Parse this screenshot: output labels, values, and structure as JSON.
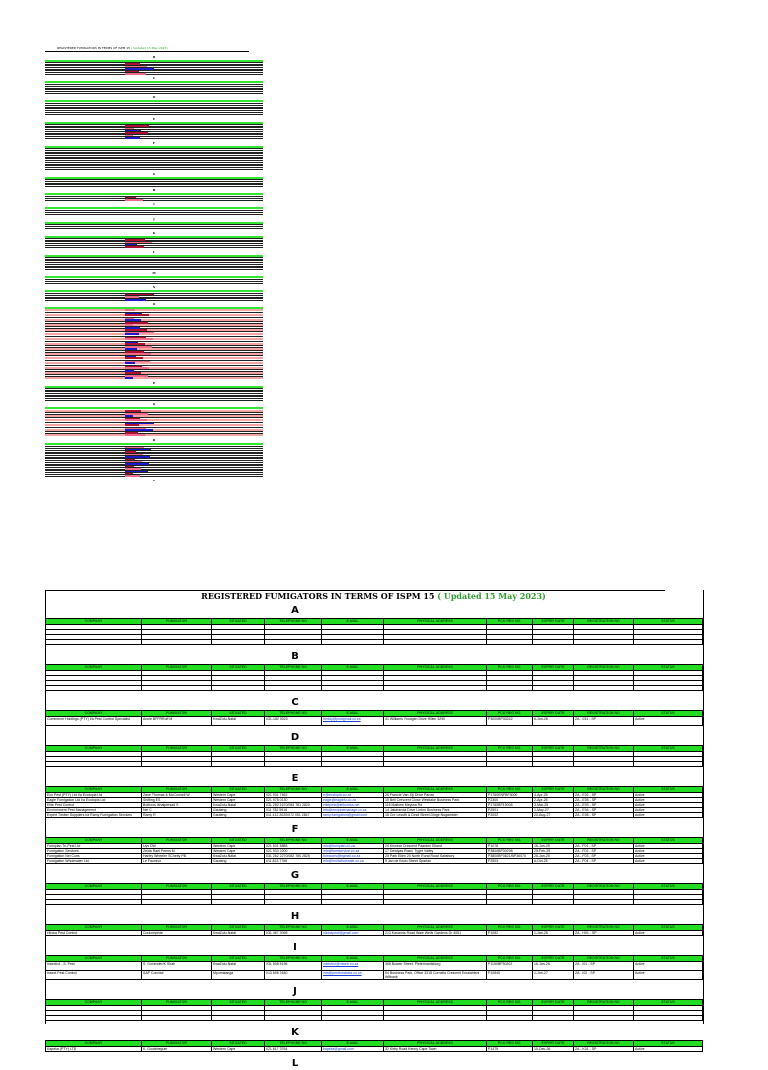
{
  "document": {
    "title": "REGISTERED FUMIGATORS IN TERMS OF ISPM 15",
    "updated": "( Updated 15 May 2023)",
    "columns": [
      "COMPANY",
      "FUMIGATOR",
      "SITUATED",
      "TELEPHONE NO",
      "E-MAIL",
      "PHYSICAL ADDRESS",
      "PCO Reg No.",
      "EXPIRY DATE",
      "REGISTRATION NO",
      "STATUS"
    ],
    "sections": [
      {
        "letter": "A",
        "rows": []
      },
      {
        "letter": "B",
        "rows": []
      },
      {
        "letter": "C",
        "rows": [
          [
            "Commerce Holdings (PTY) t/a Pest Control Specialist",
            "Annie BFFRRoff M",
            "KwaZulu-Natal",
            "031-182 0023",
            "freddy@pestgmail.co.za",
            "41 Williams Youngen Drive Hillen 3290",
            "P3000BP30242",
            "6-Jun-26",
            "ZA - 031 - SP",
            "Active"
          ]
        ]
      },
      {
        "letter": "D",
        "rows": []
      },
      {
        "letter": "E",
        "rows": [
          [
            "Eco Pest (PTY) Ltd t/a Ecotopia Ltd",
            "Zane Thomas & McConnell W",
            "Western Cape",
            "021 931 7462",
            "e@ecotopia.co.za",
            "26 Francie Van Zijl Drive Parow",
            "P1760ENFBF3000",
            "4-Apr-25",
            "ZA - E02 - SP",
            "Active"
          ],
          [
            "Eagle Fumigation Ltd t/a Ecotopia Ltd",
            "Shifting ES",
            "Western Cape",
            "021 975 0130",
            "eagle@eaglefu.co.za",
            "15 Bell Crescent Close Westlake Business Park",
            "P2300",
            "2-Apr-25",
            "ZA - E05 - SP",
            "Active"
          ],
          [
            "Elite Pest Control",
            "Bothoos Ishatpersad S",
            "KwaZulu-Natal",
            "031 282 1670/083 781 2820",
            "elitepest@telkomsa.net",
            "116 Mathew Meyiwa Rd",
            "P1760BP19006",
            "3-Mar-25",
            "ZA - E03 - SP",
            "Active"
          ],
          [
            "Environment Pest Management",
            "Nel C",
            "Gauteng",
            "011 782 5916",
            "info@envpestmanage.co.za",
            "14 Jakaranda Drive Linbro Business Park",
            "P2501",
            "1-May-27",
            "ZA - E04 - SP",
            "Active"
          ],
          [
            "Expert Timber Suppliers t/a Ramy Fumigation Services",
            "Ramy R",
            "Gauteng",
            "011 412 2020/072 051 2847",
            "ramy.fumigation@gmail.com",
            "18 Cnr Lesuth & Dindi Street Dinge Nogamster",
            "P2002",
            "20-Aug-27",
            "ZA - E06 - SP",
            "Active"
          ]
        ]
      },
      {
        "letter": "F",
        "rows": [
          [
            "Fumiplan Tri-Pest Ltd",
            "Uys DW",
            "Western Cape",
            "021 531 5885",
            "info@fumiplan.co.za",
            "20 Kinnear Crescent Paarden Eiland",
            "P1078",
            "16-Jun-25",
            "ZA - F01 - SP",
            "Active"
          ],
          [
            "Fumigation Services",
            "Zelda Rael Peens M",
            "Western Cape",
            "021 933 2200",
            "info@fumiservice.co.za",
            "17 Dewiyas Road, Tyger Valley",
            "P3800BP30298",
            "25-Feb-25",
            "ZA - F02 - SP",
            "Active"
          ],
          [
            "Fumigation Nel Cons",
            "Harley Wheeler SChelty PB",
            "KwaZulu-Natal",
            "031 262 2270/082 760 2825",
            "fumicons@bgmail.co.za",
            "20 Park Ellen 20 North Rural Road Salisbury",
            "P3800BP3621/BP36070",
            "26-Jan-25",
            "ZA - F03 - SP",
            "Active"
          ],
          [
            "Fumigation Wholesaler Ltd",
            "Le Fauneur",
            "Gauteng",
            "011 823 7766",
            "info@fumiwholesale.co.za",
            "9 Jan de Bruin Street Spartan",
            "P2503",
            "6-Oct-25",
            "ZA - F04 - SP",
            "Active"
          ]
        ]
      },
      {
        "letter": "G",
        "rows": []
      },
      {
        "letter": "H",
        "rows": [
          [
            "Hiloba Pest Control",
            "Coulompede",
            "KwaZulu-Natal",
            "031 467 3098",
            "hilobapest@gmail.com",
            "213 Kanamia Road Wale Wells Gardens Dr 4051",
            "P1082",
            "1-Jan-26",
            "ZA - H01 - SP",
            "Active"
          ]
        ]
      },
      {
        "letter": "I",
        "rows": [
          [
            "Insectrol - S. Pest",
            "S. Govender/K Shah",
            "KwaZulu-Natal",
            "031 508 5196",
            "insectrol@mweb.co.za",
            "365 Bulwer Street, Pietermaritzburg",
            "P1150BP30202",
            "16-Jan-26",
            "ZA - I01 - SP",
            "Active"
          ],
          [
            "Insect Pest Control",
            "SAP Concise",
            "Mpumalanga",
            "013 696 3180",
            "info@pestfumidata.co.za",
            "54 Business Park, Office 3318 Cornelia Crescent Emalahleni Witbank",
            "P10845",
            "1-Jun-27",
            "ZA - I02 - SP",
            "Active"
          ]
        ]
      },
      {
        "letter": "J",
        "rows": []
      },
      {
        "letter": "K",
        "rows": [
          [
            "Kapeka (PTY) LTD",
            "K. Goolebegum",
            "Western Cape",
            "021 617 3764",
            "kapeka@gmail.com",
            "32 Kirby Road Kenny Cape Town",
            "P1475",
            "10-Dec-26",
            "ZA - K01 - SP",
            "Active"
          ]
        ]
      },
      {
        "letter": "L",
        "rows": []
      }
    ]
  },
  "thumbnail": {
    "letters": [
      "B",
      "C",
      "D",
      "E",
      "F",
      "G",
      "H",
      "I",
      "J",
      "K",
      "L",
      "M",
      "N",
      "O",
      "P",
      "Q",
      "R",
      "S",
      "T",
      "U",
      "V",
      "W",
      "X",
      "Y",
      "Z"
    ]
  },
  "colors": {
    "header_green": "#22dd22",
    "updated_green": "#2e9e2e",
    "link_blue": "#1a3fd1"
  }
}
